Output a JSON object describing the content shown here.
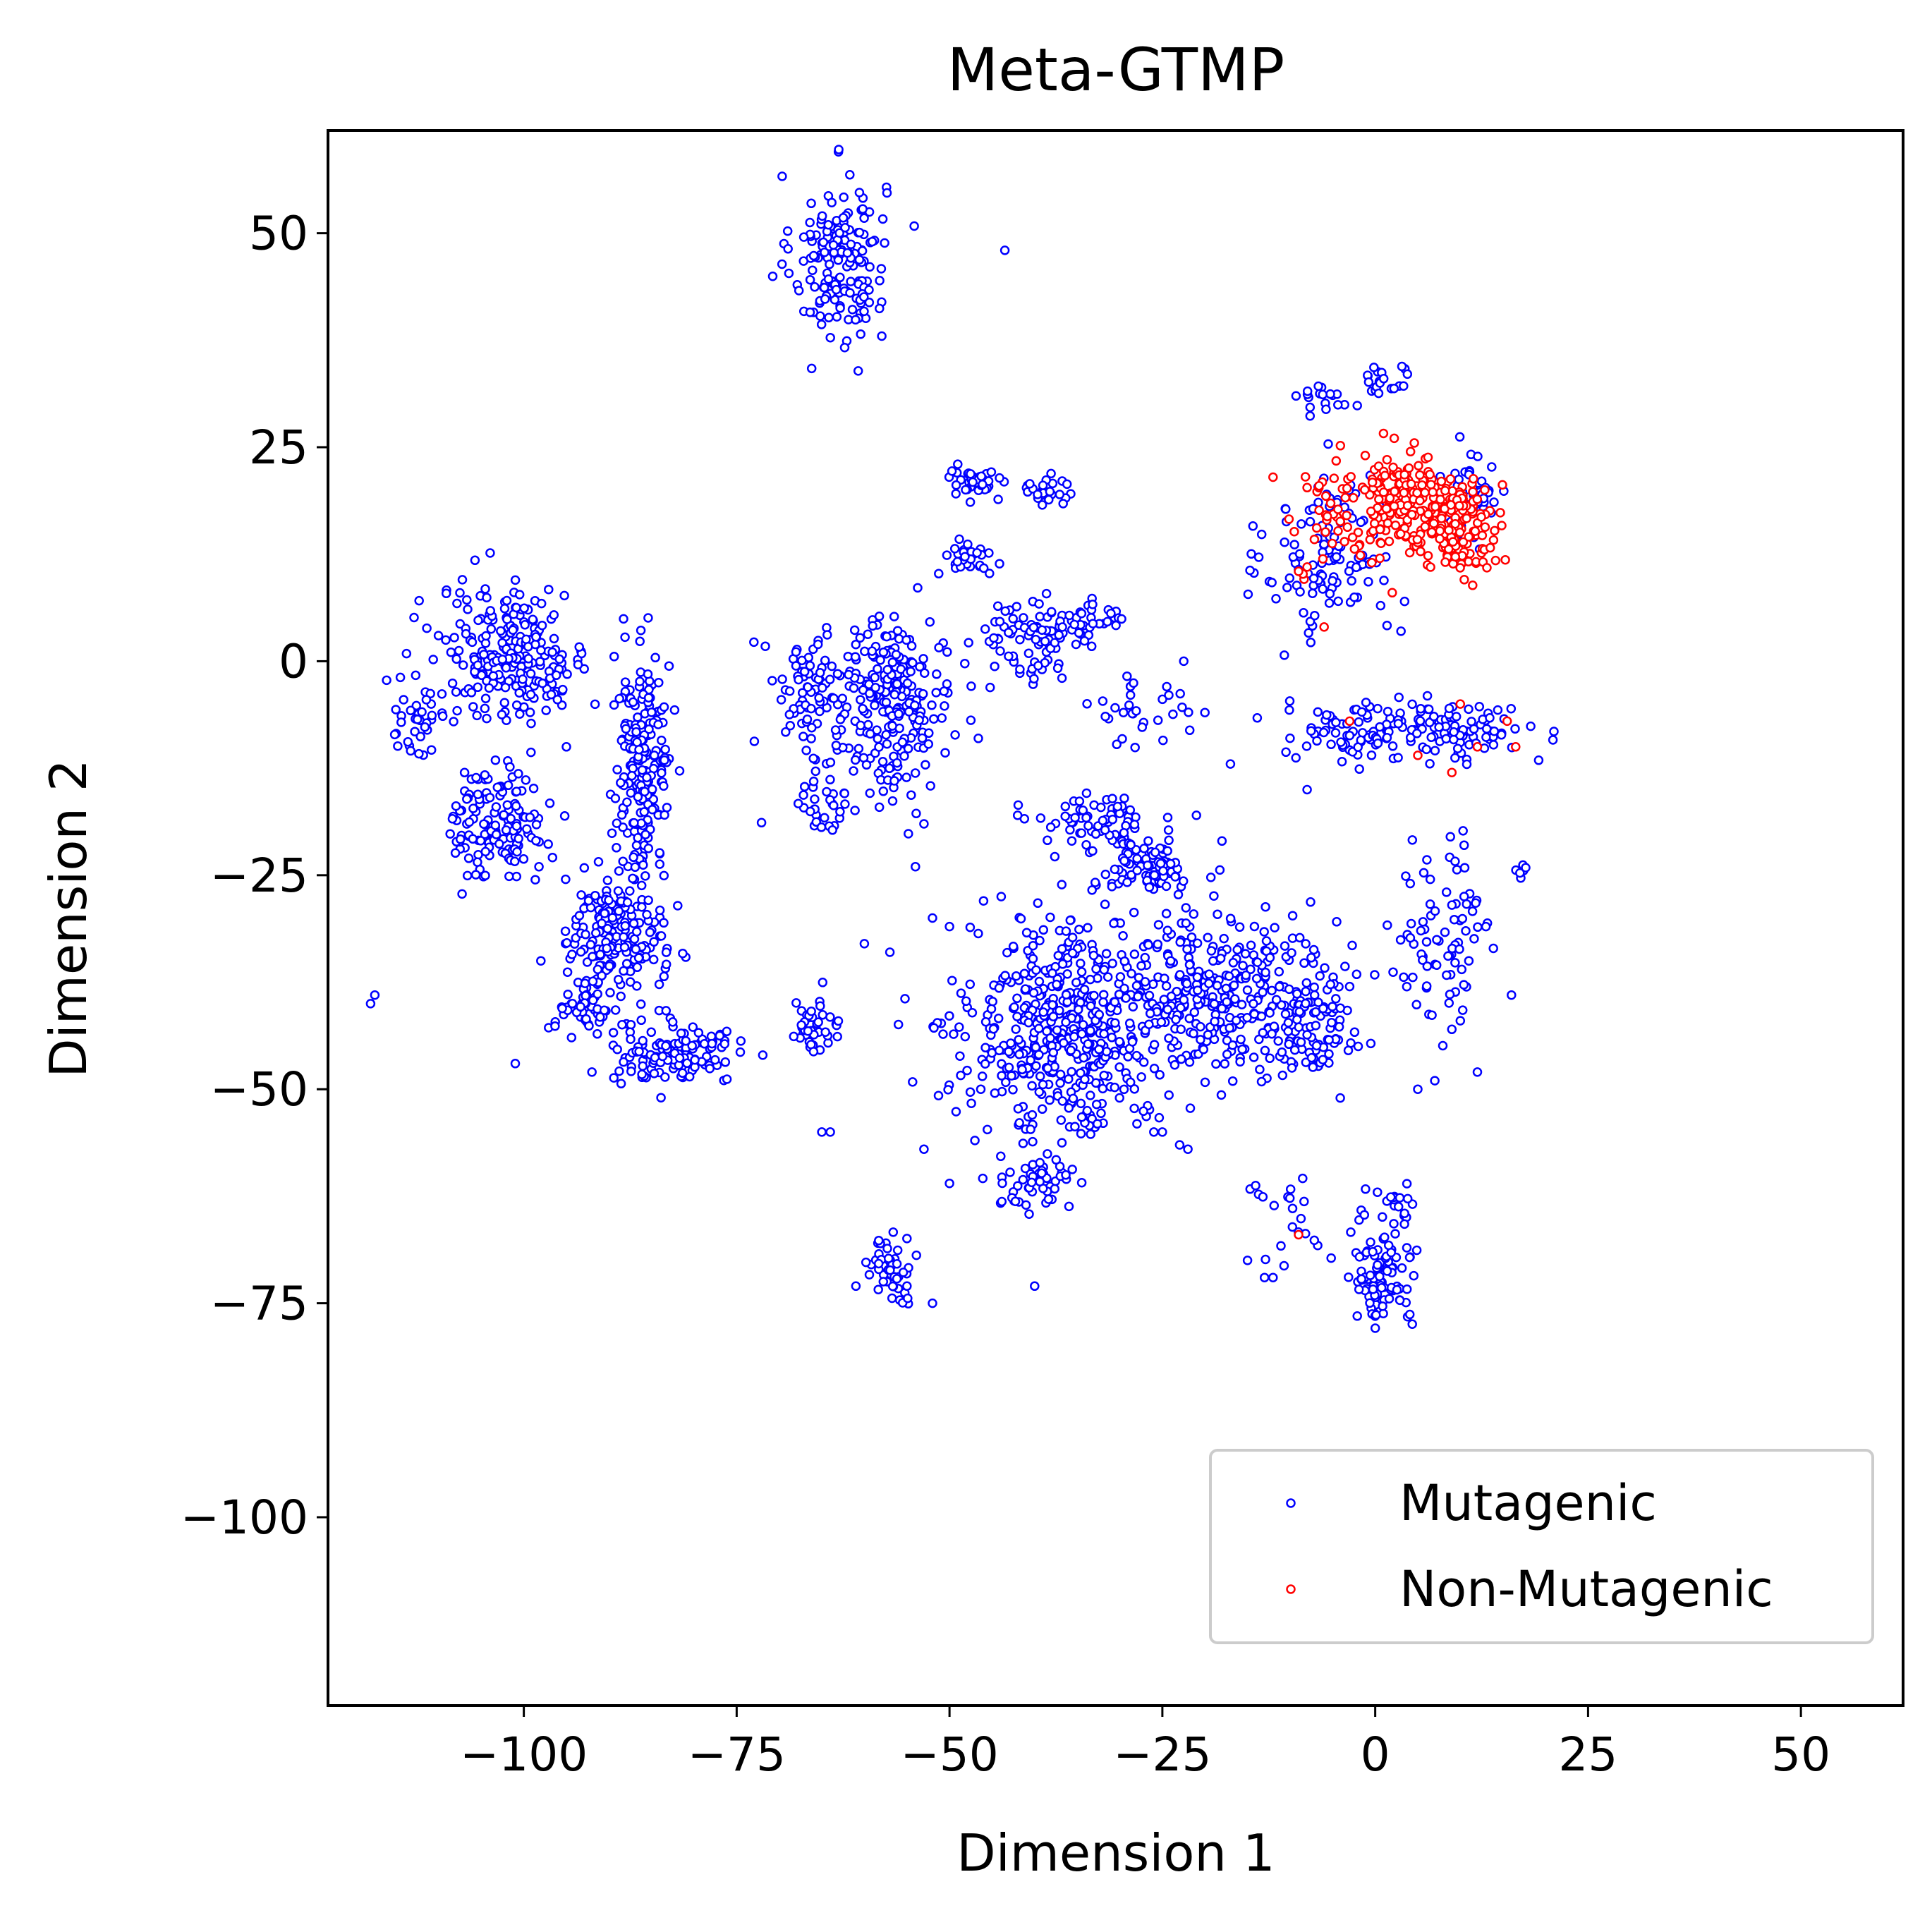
{
  "chart_data": {
    "type": "scatter",
    "title": "Meta-GTMP",
    "xlabel": "Dimension 1",
    "ylabel": "Dimension 2",
    "xlim": [
      -123,
      62
    ],
    "ylim": [
      -122,
      62
    ],
    "xticks": [
      -100,
      -75,
      -50,
      -25,
      0,
      25,
      50
    ],
    "xtick_labels": [
      "−100",
      "−75",
      "−50",
      "−25",
      "0",
      "25",
      "50"
    ],
    "yticks": [
      50,
      25,
      0,
      -25,
      -50,
      -75,
      -100
    ],
    "ytick_labels": [
      "50",
      "25",
      "0",
      "−25",
      "−50",
      "−75",
      "−100"
    ],
    "grid": false,
    "legend": {
      "position": "bottom-right",
      "entries": [
        "Mutagenic",
        "Non-Mutagenic"
      ]
    },
    "series": [
      {
        "name": "Mutagenic",
        "color": "#0000ff",
        "marker": "open-circle",
        "clusters": [
          {
            "cx": -63,
            "cy": 47,
            "rx": 5,
            "ry": 9,
            "n": 170
          },
          {
            "cx": 1,
            "cy": 33,
            "rx": 3,
            "ry": 2,
            "n": 20
          },
          {
            "cx": -6,
            "cy": 31,
            "rx": 4,
            "ry": 2,
            "n": 18
          },
          {
            "cx": -5,
            "cy": 12,
            "rx": 7,
            "ry": 9,
            "n": 120
          },
          {
            "cx": 11,
            "cy": 19,
            "rx": 4,
            "ry": 5,
            "n": 50
          },
          {
            "cx": -101,
            "cy": 1,
            "rx": 8,
            "ry": 7,
            "n": 240
          },
          {
            "cx": -103,
            "cy": -19,
            "rx": 5,
            "ry": 6,
            "n": 140
          },
          {
            "cx": -86,
            "cy": -12,
            "rx": 3,
            "ry": 11,
            "n": 200
          },
          {
            "cx": -89,
            "cy": -32,
            "rx": 5,
            "ry": 7,
            "n": 200
          },
          {
            "cx": -93,
            "cy": -40,
            "rx": 3,
            "ry": 3,
            "n": 50
          },
          {
            "cx": -82,
            "cy": -46,
            "rx": 7,
            "ry": 3,
            "n": 130
          },
          {
            "cx": -66,
            "cy": -43,
            "rx": 3,
            "ry": 3,
            "n": 40
          },
          {
            "cx": -57,
            "cy": -5,
            "rx": 7,
            "ry": 9,
            "n": 260
          },
          {
            "cx": -67,
            "cy": -3,
            "rx": 4,
            "ry": 6,
            "n": 60
          },
          {
            "cx": -65,
            "cy": -17,
            "rx": 3,
            "ry": 4,
            "n": 30
          },
          {
            "cx": -47,
            "cy": 21,
            "rx": 3,
            "ry": 2,
            "n": 40
          },
          {
            "cx": -39,
            "cy": 20,
            "rx": 3,
            "ry": 2,
            "n": 30
          },
          {
            "cx": -48,
            "cy": 12,
            "rx": 3,
            "ry": 2,
            "n": 30
          },
          {
            "cx": -40,
            "cy": 2,
            "rx": 6,
            "ry": 5,
            "n": 80
          },
          {
            "cx": -33,
            "cy": 5,
            "rx": 4,
            "ry": 2,
            "n": 30
          },
          {
            "cx": -33,
            "cy": -19,
            "rx": 6,
            "ry": 3,
            "n": 70
          },
          {
            "cx": -27,
            "cy": -24,
            "rx": 5,
            "ry": 3,
            "n": 80
          },
          {
            "cx": -36,
            "cy": -43,
            "rx": 11,
            "ry": 11,
            "n": 520
          },
          {
            "cx": -19,
            "cy": -38,
            "rx": 9,
            "ry": 9,
            "n": 260
          },
          {
            "cx": -8,
            "cy": -42,
            "rx": 5,
            "ry": 7,
            "n": 120
          },
          {
            "cx": -40,
            "cy": -61,
            "rx": 4,
            "ry": 3,
            "n": 50
          },
          {
            "cx": -28,
            "cy": -6,
            "rx": 5,
            "ry": 5,
            "n": 30
          },
          {
            "cx": 4,
            "cy": -8,
            "rx": 13,
            "ry": 3,
            "n": 170
          },
          {
            "cx": 8,
            "cy": -32,
            "rx": 5,
            "ry": 9,
            "n": 80
          },
          {
            "cx": 17,
            "cy": -25,
            "rx": 1,
            "ry": 1,
            "n": 6
          },
          {
            "cx": 1,
            "cy": -72,
            "rx": 4,
            "ry": 5,
            "n": 90
          },
          {
            "cx": 2,
            "cy": -64,
            "rx": 3,
            "ry": 3,
            "n": 20
          },
          {
            "cx": -10,
            "cy": -64,
            "rx": 4,
            "ry": 5,
            "n": 20
          },
          {
            "cx": -57,
            "cy": -71,
            "rx": 3,
            "ry": 3,
            "n": 50
          },
          {
            "cx": -112,
            "cy": -6,
            "rx": 3,
            "ry": 5,
            "n": 40
          }
        ],
        "points": [
          [
            -118,
            -40
          ],
          [
            -117.5,
            -39
          ],
          [
            -101,
            -47
          ],
          [
            -98,
            -35
          ],
          [
            -95,
            -10
          ],
          [
            -92,
            -48
          ],
          [
            -43.5,
            48
          ],
          [
            -40,
            -73
          ],
          [
            -60,
            -33
          ],
          [
            -57,
            -34
          ],
          [
            -54,
            -24
          ],
          [
            -53,
            -19
          ],
          [
            -52,
            -30
          ],
          [
            -50,
            -31
          ],
          [
            -65,
            -55
          ],
          [
            -64,
            -55
          ],
          [
            -61,
            -73
          ],
          [
            -55,
            -73
          ],
          [
            -52,
            -75
          ],
          [
            -50,
            -61
          ],
          [
            -53,
            -57
          ],
          [
            -22,
            -57
          ],
          [
            -25,
            -55
          ],
          [
            -26,
            -55
          ],
          [
            -15,
            -70
          ],
          [
            -13,
            -72
          ],
          [
            -12,
            -72
          ],
          [
            -2,
            -45
          ],
          [
            5,
            -50
          ],
          [
            7,
            -49
          ],
          [
            9,
            -43
          ],
          [
            10,
            -42
          ],
          [
            12,
            -48
          ],
          [
            16,
            -39
          ],
          [
            11,
            -35
          ],
          [
            13,
            -31
          ],
          [
            -21,
            -18
          ],
          [
            -18,
            -21
          ],
          [
            -10,
            -9
          ],
          [
            -8,
            -15
          ],
          [
            -17,
            -12
          ],
          [
            -20,
            -6
          ],
          [
            -3,
            -38
          ],
          [
            -42,
            -18
          ],
          [
            -46,
            -28
          ]
        ]
      },
      {
        "name": "Non-Mutagenic",
        "color": "#ff0000",
        "marker": "open-circle",
        "clusters": [
          {
            "cx": 3,
            "cy": 19,
            "rx": 5,
            "ry": 5,
            "n": 170
          },
          {
            "cx": 10,
            "cy": 16,
            "rx": 4,
            "ry": 5,
            "n": 150
          },
          {
            "cx": -5,
            "cy": 17,
            "rx": 4,
            "ry": 5,
            "n": 40
          }
        ],
        "points": [
          [
            -12,
            21.5
          ],
          [
            -8,
            11
          ],
          [
            -9,
            10.5
          ],
          [
            -6,
            4
          ],
          [
            2,
            8
          ],
          [
            -3,
            -7
          ],
          [
            5,
            -11
          ],
          [
            9,
            -13
          ],
          [
            10,
            -5
          ],
          [
            12,
            -10
          ],
          [
            15.5,
            -7
          ],
          [
            16.5,
            -10
          ],
          [
            -9,
            -67
          ]
        ]
      }
    ]
  }
}
